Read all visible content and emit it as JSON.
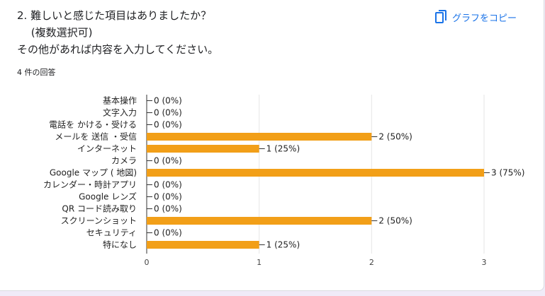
{
  "question": {
    "title": "2. 難しいと感じた項目はありましたか？\n　 (複数選択可)\nその他があれば内容を入力してください。",
    "response_count": "4 件の回答"
  },
  "copy_button": {
    "label": "グラフをコピー",
    "icon": "copy-icon"
  },
  "colors": {
    "bar": "#f29f18",
    "accent": "#1a73e8"
  },
  "chart_data": {
    "type": "bar",
    "orientation": "horizontal",
    "categories": [
      "基本操作",
      "文字入力",
      "電話を かける・受ける",
      "メールを 送信 ・受信",
      "インターネット",
      "カメラ",
      "Google マップ ( 地図)",
      "カレンダー・時計アプリ",
      "Google レンズ",
      "QR コード読み取り",
      "スクリーンショット",
      "セキュリティ",
      "特になし"
    ],
    "values": [
      0,
      0,
      0,
      2,
      1,
      0,
      3,
      0,
      0,
      0,
      2,
      0,
      1
    ],
    "value_labels": [
      "0 (0%)",
      "0 (0%)",
      "0 (0%)",
      "2 (50%)",
      "1 (25%)",
      "0 (0%)",
      "3 (75%)",
      "0 (0%)",
      "0 (0%)",
      "0 (0%)",
      "2 (50%)",
      "0 (0%)",
      "1 (25%)"
    ],
    "xlim": [
      0,
      3
    ],
    "xticks": [
      0,
      1,
      2,
      3
    ],
    "grid": true,
    "title": "",
    "xlabel": "",
    "ylabel": ""
  }
}
